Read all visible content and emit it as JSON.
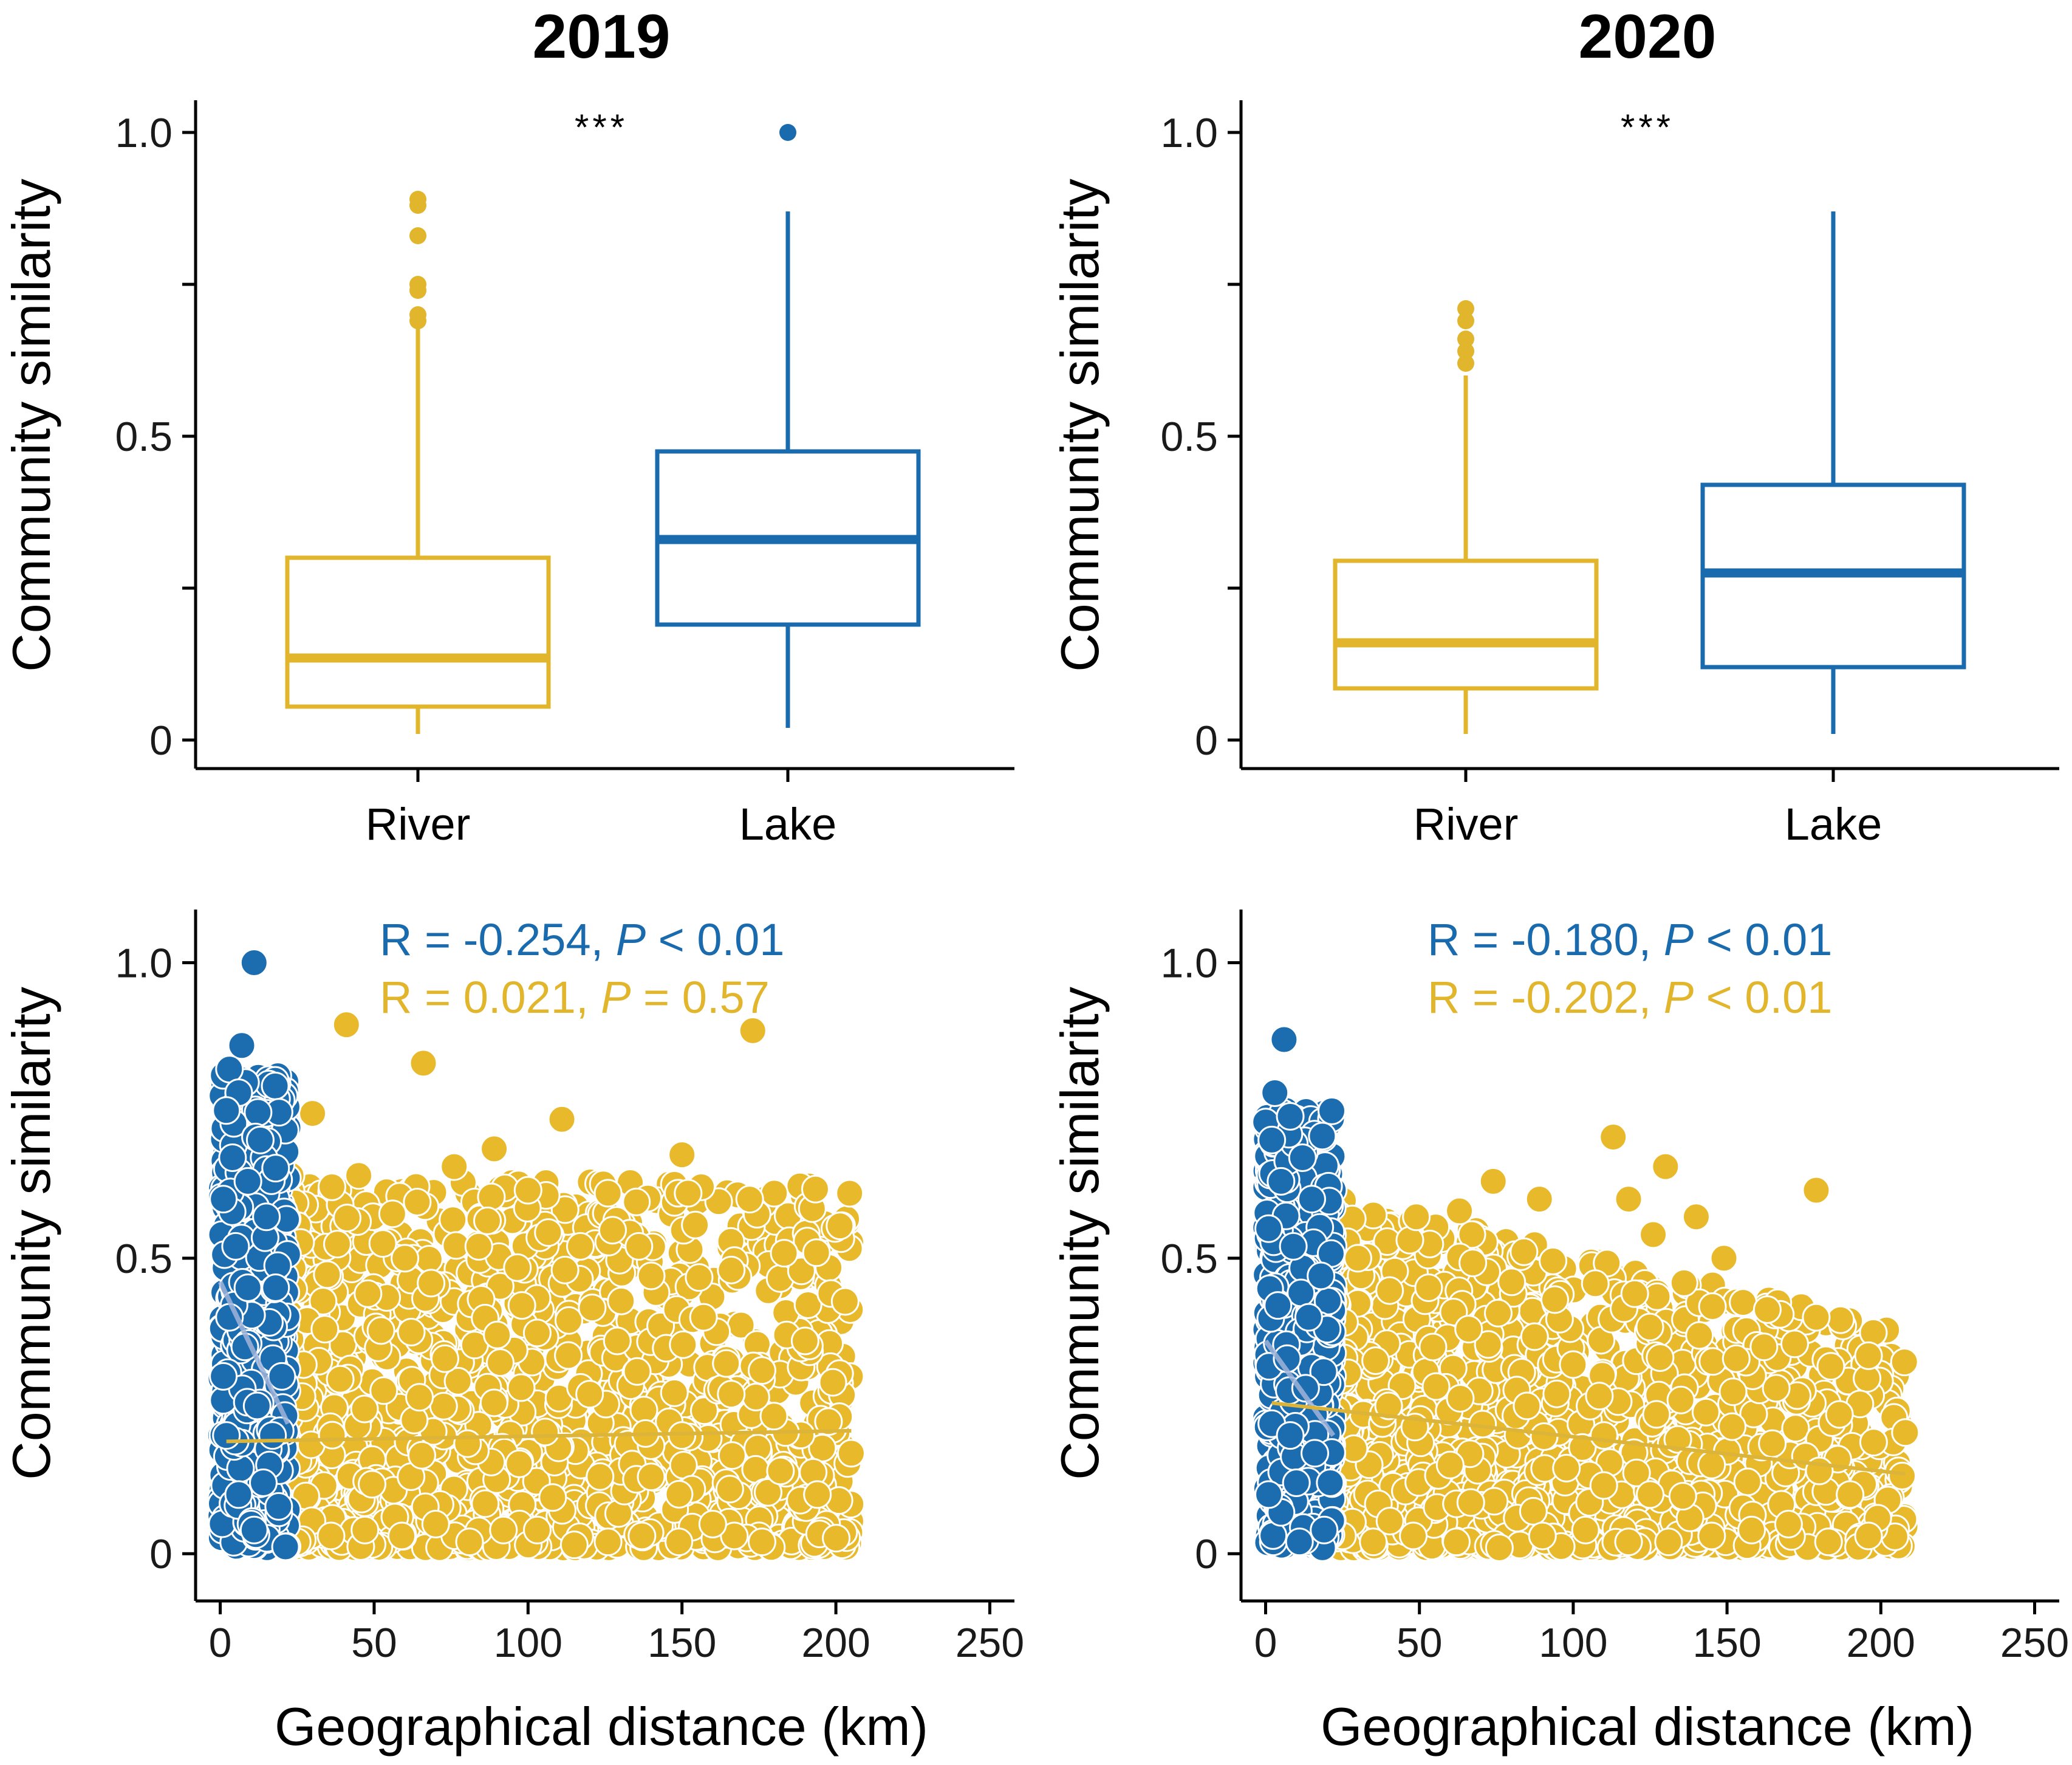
{
  "colors": {
    "river": "#E1B52C",
    "lake": "#1A6AAE",
    "river_fill": "#E8B92A",
    "lake_fill": "#1C6CB0"
  },
  "chart_data": [
    {
      "id": "box-2019",
      "type": "box",
      "title": "2019",
      "xlabel": "",
      "ylabel": "Community similarity",
      "ylim": [
        0,
        1.05
      ],
      "yticks": [
        {
          "v": 0,
          "label": "0"
        },
        {
          "v": 0.5,
          "label": "0.5"
        },
        {
          "v": 1.0,
          "label": "1.0"
        }
      ],
      "significance": "***",
      "groups": [
        {
          "name": "River",
          "color_key": "river",
          "whisker_low": 0.01,
          "q1": 0.055,
          "median": 0.135,
          "q3": 0.3,
          "whisker_high": 0.68,
          "outliers": [
            0.69,
            0.7,
            0.74,
            0.75,
            0.83,
            0.88,
            0.89
          ]
        },
        {
          "name": "Lake",
          "color_key": "lake",
          "whisker_low": 0.02,
          "q1": 0.19,
          "median": 0.33,
          "q3": 0.475,
          "whisker_high": 0.87,
          "outliers": [
            1.0
          ]
        }
      ]
    },
    {
      "id": "box-2020",
      "type": "box",
      "title": "2020",
      "xlabel": "",
      "ylabel": "Community similarity",
      "ylim": [
        0,
        1.05
      ],
      "yticks": [
        {
          "v": 0,
          "label": "0"
        },
        {
          "v": 0.5,
          "label": "0.5"
        },
        {
          "v": 1.0,
          "label": "1.0"
        }
      ],
      "significance": "***",
      "groups": [
        {
          "name": "River",
          "color_key": "river",
          "whisker_low": 0.01,
          "q1": 0.085,
          "median": 0.16,
          "q3": 0.295,
          "whisker_high": 0.6,
          "outliers": [
            0.62,
            0.64,
            0.66,
            0.69,
            0.71
          ]
        },
        {
          "name": "Lake",
          "color_key": "lake",
          "whisker_low": 0.01,
          "q1": 0.12,
          "median": 0.275,
          "q3": 0.42,
          "whisker_high": 0.87,
          "outliers": []
        }
      ]
    },
    {
      "id": "scatter-2019",
      "type": "scatter",
      "xlabel": "Geographical distance (km)",
      "ylabel": "Community similarity",
      "xlim": [
        -8,
        258
      ],
      "ylim": [
        -0.08,
        1.09
      ],
      "xticks": [
        {
          "v": 0,
          "label": "0"
        },
        {
          "v": 50,
          "label": "50"
        },
        {
          "v": 100,
          "label": "100"
        },
        {
          "v": 150,
          "label": "150"
        },
        {
          "v": 200,
          "label": "200"
        },
        {
          "v": 250,
          "label": "250"
        }
      ],
      "yticks": [
        {
          "v": 0,
          "label": "0"
        },
        {
          "v": 0.5,
          "label": "0.5"
        },
        {
          "v": 1.0,
          "label": "1.0"
        }
      ],
      "annotations": [
        {
          "color_key": "lake",
          "pre": "R = -0.254, ",
          "p": "P",
          "post": " < 0.01"
        },
        {
          "color_key": "river",
          "pre": "R = 0.021, ",
          "p": "P",
          "post": " = 0.57"
        }
      ],
      "series": [
        {
          "name": "River",
          "color_key": "river_fill",
          "fit": {
            "x0": 2,
            "y0": 0.19,
            "x1": 205,
            "y1": 0.208
          },
          "points": [
            [
              41,
              0.895
            ],
            [
              66,
              0.83
            ],
            [
              173,
              0.885
            ],
            [
              111,
              0.735
            ],
            [
              30,
              0.745
            ],
            [
              89,
              0.685
            ],
            [
              150,
              0.675
            ],
            [
              45,
              0.64
            ],
            [
              76,
              0.655
            ],
            [
              23,
              0.64
            ],
            [
              180,
              0.61
            ],
            [
              100,
              0.615
            ],
            [
              126,
              0.61
            ],
            [
              172,
              0.6
            ],
            [
              152,
              0.61
            ],
            [
              56,
              0.575
            ],
            [
              64,
              0.595
            ],
            [
              117,
              0.52
            ],
            [
              136,
              0.52
            ],
            [
              166,
              0.48
            ],
            [
              184,
              0.37
            ],
            [
              190,
              0.36
            ],
            [
              176,
              0.31
            ],
            [
              199,
              0.29
            ],
            [
              174,
              0.265
            ],
            [
              205,
              0.17
            ],
            [
              201,
              0.09
            ],
            [
              194,
              0.1
            ],
            [
              182,
              0.14
            ],
            [
              176,
              0.02
            ],
            [
              167,
              0.03
            ],
            [
              160,
              0.05
            ],
            [
              149,
              0.02
            ],
            [
              137,
              0.03
            ],
            [
              126,
              0.02
            ],
            [
              115,
              0.015
            ],
            [
              103,
              0.04
            ],
            [
              92,
              0.04
            ],
            [
              81,
              0.02
            ],
            [
              70,
              0.05
            ],
            [
              59,
              0.03
            ],
            [
              47,
              0.04
            ],
            [
              36,
              0.03
            ],
            [
              25,
              0.02
            ],
            [
              108,
              0.095
            ],
            [
              140,
              0.13
            ],
            [
              150,
              0.2
            ],
            [
              129,
              0.36
            ],
            [
              98,
              0.42
            ],
            [
              84,
              0.52
            ],
            [
              60,
              0.5
            ],
            [
              48,
              0.44
            ],
            [
              34,
              0.38
            ],
            [
              27,
              0.32
            ],
            [
              73,
              0.33
            ],
            [
              90,
              0.37
            ],
            [
              120,
              0.27
            ],
            [
              157,
              0.4
            ],
            [
              166,
              0.27
            ],
            [
              140,
              0.47
            ],
            [
              112,
              0.48
            ]
          ]
        },
        {
          "name": "Lake",
          "color_key": "lake_fill",
          "fit": {
            "x0": 0,
            "y0": 0.46,
            "x1": 22,
            "y1": 0.22
          },
          "points": [
            [
              11,
              1.0
            ],
            [
              7,
              0.86
            ],
            [
              3,
              0.82
            ],
            [
              6,
              0.78
            ],
            [
              2,
              0.75
            ],
            [
              13,
              0.7
            ],
            [
              4,
              0.67
            ],
            [
              9,
              0.63
            ],
            [
              1,
              0.6
            ],
            [
              15,
              0.57
            ],
            [
              5,
              0.52
            ],
            [
              18,
              0.45
            ],
            [
              3,
              0.4
            ],
            [
              8,
              0.35
            ],
            [
              20,
              0.3
            ],
            [
              12,
              0.25
            ],
            [
              2,
              0.2
            ],
            [
              16,
              0.15
            ],
            [
              6,
              0.1
            ],
            [
              10,
              0.05
            ],
            [
              19,
              0.08
            ],
            [
              14,
              0.12
            ],
            [
              1,
              0.3
            ],
            [
              9,
              0.45
            ],
            [
              17,
              0.2
            ],
            [
              11,
              0.04
            ]
          ]
        }
      ]
    },
    {
      "id": "scatter-2020",
      "type": "scatter",
      "xlabel": "Geographical distance (km)",
      "ylabel": "Community similarity",
      "xlim": [
        -8,
        258
      ],
      "ylim": [
        -0.08,
        1.09
      ],
      "xticks": [
        {
          "v": 0,
          "label": "0"
        },
        {
          "v": 50,
          "label": "50"
        },
        {
          "v": 100,
          "label": "100"
        },
        {
          "v": 150,
          "label": "150"
        },
        {
          "v": 200,
          "label": "200"
        },
        {
          "v": 250,
          "label": "250"
        }
      ],
      "yticks": [
        {
          "v": 0,
          "label": "0"
        },
        {
          "v": 0.5,
          "label": "0.5"
        },
        {
          "v": 1.0,
          "label": "1.0"
        }
      ],
      "annotations": [
        {
          "color_key": "lake",
          "pre": "R = -0.180, ",
          "p": "P",
          "post": " < 0.01"
        },
        {
          "color_key": "river",
          "pre": "R = -0.202, ",
          "p": "P",
          "post": " < 0.01"
        }
      ],
      "series": [
        {
          "name": "River",
          "color_key": "river_fill",
          "fit": {
            "x0": 2,
            "y0": 0.255,
            "x1": 208,
            "y1": 0.135
          },
          "points": [
            [
              113,
              0.705
            ],
            [
              130,
              0.655
            ],
            [
              179,
              0.615
            ],
            [
              74,
              0.63
            ],
            [
              118,
              0.6
            ],
            [
              89,
              0.6
            ],
            [
              140,
              0.57
            ],
            [
              63,
              0.58
            ],
            [
              126,
              0.54
            ],
            [
              149,
              0.5
            ],
            [
              49,
              0.57
            ],
            [
              162,
              0.35
            ],
            [
              172,
              0.355
            ],
            [
              179,
              0.4
            ],
            [
              196,
              0.335
            ],
            [
              153,
              0.33
            ],
            [
              166,
              0.28
            ],
            [
              208,
              0.205
            ],
            [
              186,
              0.16
            ],
            [
              180,
              0.14
            ],
            [
              190,
              0.1
            ],
            [
              199,
              0.06
            ],
            [
              196,
              0.03
            ],
            [
              183,
              0.02
            ],
            [
              170,
              0.05
            ],
            [
              158,
              0.04
            ],
            [
              145,
              0.03
            ],
            [
              131,
              0.02
            ],
            [
              118,
              0.02
            ],
            [
              104,
              0.04
            ],
            [
              90,
              0.03
            ],
            [
              76,
              0.01
            ],
            [
              62,
              0.02
            ],
            [
              48,
              0.03
            ],
            [
              35,
              0.02
            ],
            [
              25,
              0.03
            ],
            [
              94,
              0.43
            ],
            [
              120,
              0.44
            ],
            [
              80,
              0.46
            ],
            [
              66,
              0.38
            ],
            [
              53,
              0.45
            ],
            [
              30,
              0.5
            ],
            [
              100,
              0.32
            ],
            [
              135,
              0.26
            ],
            [
              110,
              0.2
            ],
            [
              85,
              0.25
            ],
            [
              60,
              0.15
            ],
            [
              40,
              0.25
            ],
            [
              145,
              0.15
            ],
            [
              125,
              0.1
            ]
          ]
        },
        {
          "name": "Lake",
          "color_key": "lake_fill",
          "fit": {
            "x0": 0,
            "y0": 0.36,
            "x1": 22,
            "y1": 0.2
          },
          "points": [
            [
              6,
              0.87
            ],
            [
              3,
              0.78
            ],
            [
              8,
              0.74
            ],
            [
              2,
              0.7
            ],
            [
              12,
              0.67
            ],
            [
              5,
              0.63
            ],
            [
              15,
              0.6
            ],
            [
              1,
              0.55
            ],
            [
              9,
              0.52
            ],
            [
              18,
              0.47
            ],
            [
              4,
              0.42
            ],
            [
              20,
              0.38
            ],
            [
              7,
              0.33
            ],
            [
              13,
              0.28
            ],
            [
              2,
              0.22
            ],
            [
              16,
              0.17
            ],
            [
              10,
              0.12
            ],
            [
              5,
              0.07
            ],
            [
              19,
              0.04
            ],
            [
              1,
              0.1
            ],
            [
              14,
              0.4
            ],
            [
              8,
              0.2
            ],
            [
              21,
              0.12
            ],
            [
              11,
              0.02
            ]
          ]
        }
      ]
    }
  ]
}
